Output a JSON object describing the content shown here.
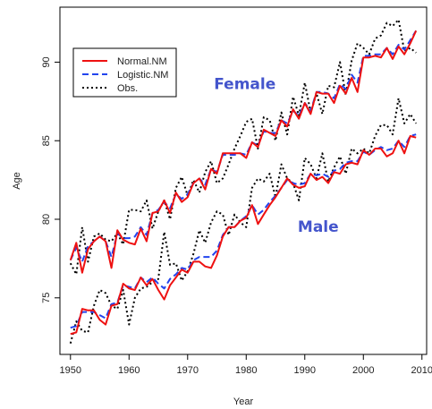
{
  "chart_data": {
    "type": "line",
    "xlabel": "Year",
    "ylabel": "Age",
    "xlim": [
      1948.2,
      2010.8
    ],
    "ylim": [
      71.4,
      93.5
    ],
    "x_ticks": [
      1950,
      1960,
      1970,
      1980,
      1990,
      2000,
      2010
    ],
    "y_ticks": [
      75,
      80,
      85,
      90
    ],
    "grid": false,
    "legend_position": "top-left",
    "legend": [
      {
        "label": "Normal.NM",
        "color": "#ee1111",
        "style": "solid"
      },
      {
        "label": "Logistic.NM",
        "color": "#2244ee",
        "style": "dashed"
      },
      {
        "label": "Obs.",
        "color": "#000000",
        "style": "dotted"
      }
    ],
    "annotations": [
      {
        "text": "Female",
        "x": 1974.5,
        "y": 88.3,
        "color": "#4455cc"
      },
      {
        "text": "Male",
        "x": 1988.8,
        "y": 79.2,
        "color": "#4455cc"
      }
    ],
    "x": [
      1950,
      1951,
      1952,
      1953,
      1954,
      1955,
      1956,
      1957,
      1958,
      1959,
      1960,
      1961,
      1962,
      1963,
      1964,
      1965,
      1966,
      1967,
      1968,
      1969,
      1970,
      1971,
      1972,
      1973,
      1974,
      1975,
      1976,
      1977,
      1978,
      1979,
      1980,
      1981,
      1982,
      1983,
      1984,
      1985,
      1986,
      1987,
      1988,
      1989,
      1990,
      1991,
      1992,
      1993,
      1994,
      1995,
      1996,
      1997,
      1998,
      1999,
      2000,
      2001,
      2002,
      2003,
      2004,
      2005,
      2006,
      2007,
      2008,
      2009
    ],
    "series": [
      {
        "name": "Normal.NM",
        "group": "Female",
        "values": [
          77.4,
          78.5,
          76.6,
          78.1,
          78.6,
          78.9,
          78.6,
          76.9,
          79.3,
          78.7,
          78.5,
          78.4,
          79.4,
          78.6,
          80.4,
          80.5,
          81.2,
          80.4,
          81.7,
          81.1,
          81.4,
          82.3,
          82.6,
          81.9,
          83.2,
          82.9,
          84.2,
          84.2,
          84.2,
          84.2,
          83.9,
          84.9,
          84.6,
          85.7,
          85.5,
          85.3,
          86.3,
          85.9,
          87.0,
          86.4,
          87.4,
          86.7,
          88.1,
          88.0,
          88.0,
          87.4,
          88.5,
          88.0,
          89.0,
          88.1,
          90.3,
          90.3,
          90.4,
          90.3,
          90.9,
          90.2,
          91.0,
          90.5,
          91.2,
          92.0
        ]
      },
      {
        "name": "Normal.NM",
        "group": "Male",
        "values": [
          72.7,
          72.8,
          74.3,
          74.2,
          74.2,
          73.6,
          73.3,
          74.5,
          74.6,
          75.9,
          75.6,
          75.5,
          76.3,
          75.8,
          76.2,
          75.5,
          74.9,
          75.8,
          76.3,
          76.8,
          76.6,
          77.3,
          77.3,
          77.0,
          76.9,
          77.7,
          78.9,
          79.5,
          79.5,
          79.9,
          80.1,
          80.9,
          79.7,
          80.3,
          80.9,
          81.4,
          82.0,
          82.6,
          82.2,
          82.0,
          82.1,
          82.9,
          82.5,
          82.7,
          82.3,
          83.0,
          82.9,
          83.5,
          83.6,
          83.5,
          84.4,
          84.1,
          84.5,
          84.5,
          84.0,
          84.2,
          85.0,
          84.2,
          85.3,
          85.2
        ]
      },
      {
        "name": "Logistic.NM",
        "group": "Female",
        "values": [
          77.4,
          78.2,
          77.3,
          78.3,
          78.6,
          78.9,
          78.6,
          77.6,
          79.1,
          78.8,
          78.8,
          78.9,
          79.5,
          79.0,
          80.4,
          80.6,
          81.1,
          80.7,
          81.6,
          81.3,
          81.6,
          82.3,
          82.6,
          82.2,
          83.2,
          83.0,
          84.1,
          84.1,
          84.1,
          84.2,
          84.1,
          84.9,
          84.7,
          85.6,
          85.5,
          85.5,
          86.3,
          86.1,
          86.9,
          86.6,
          87.4,
          86.9,
          88.1,
          88.1,
          88.0,
          87.7,
          88.6,
          88.3,
          89.2,
          88.7,
          90.4,
          90.4,
          90.5,
          90.5,
          90.9,
          90.5,
          91.1,
          90.8,
          91.4,
          92.0
        ]
      },
      {
        "name": "Logistic.NM",
        "group": "Male",
        "values": [
          73.1,
          73.2,
          74.1,
          74.1,
          74.1,
          73.9,
          73.7,
          74.6,
          74.7,
          75.8,
          75.7,
          75.6,
          76.3,
          76.0,
          76.3,
          75.9,
          75.6,
          76.2,
          76.5,
          76.9,
          76.8,
          77.4,
          77.6,
          77.6,
          77.6,
          78.0,
          79.0,
          79.5,
          79.5,
          79.9,
          80.2,
          80.9,
          80.3,
          80.6,
          81.1,
          81.5,
          82.0,
          82.5,
          82.3,
          82.2,
          82.3,
          82.9,
          82.8,
          82.9,
          82.7,
          83.1,
          83.2,
          83.6,
          83.7,
          83.7,
          84.3,
          84.1,
          84.4,
          84.6,
          84.4,
          84.5,
          85.0,
          84.6,
          85.3,
          85.4
        ]
      },
      {
        "name": "Obs.",
        "group": "Female",
        "values": [
          77.2,
          76.5,
          79.5,
          77.3,
          78.9,
          79.1,
          78.7,
          78.6,
          79.1,
          78.4,
          80.6,
          80.6,
          80.5,
          81.2,
          79.4,
          80.5,
          81.2,
          80.0,
          82.0,
          82.7,
          81.5,
          82.5,
          81.7,
          83.0,
          83.7,
          82.3,
          82.6,
          83.5,
          84.5,
          85.3,
          86.2,
          86.4,
          84.5,
          86.5,
          86.3,
          85.0,
          86.8,
          85.4,
          87.8,
          86.6,
          88.7,
          86.8,
          88.0,
          86.7,
          88.5,
          88.4,
          90.0,
          87.9,
          90.1,
          91.2,
          90.9,
          90.5,
          91.5,
          91.7,
          92.5,
          92.3,
          92.7,
          90.7,
          90.9,
          90.6
        ]
      },
      {
        "name": "Obs.",
        "group": "Male",
        "values": [
          72.1,
          73.5,
          72.9,
          72.8,
          74.5,
          75.5,
          75.3,
          74.5,
          74.3,
          75.5,
          73.3,
          75.0,
          75.6,
          75.7,
          76.0,
          76.2,
          79.2,
          77.1,
          77.2,
          76.1,
          76.7,
          77.8,
          79.3,
          78.5,
          79.8,
          80.5,
          80.3,
          79.0,
          80.3,
          79.8,
          79.5,
          82.0,
          82.6,
          82.4,
          82.9,
          81.4,
          83.5,
          82.6,
          82.3,
          81.2,
          83.9,
          83.5,
          82.6,
          84.2,
          82.4,
          83.3,
          84.0,
          82.9,
          84.5,
          84.2,
          84.5,
          84.2,
          85.3,
          86.0,
          86.0,
          85.4,
          87.7,
          86.1,
          86.7,
          86.1
        ]
      }
    ]
  }
}
